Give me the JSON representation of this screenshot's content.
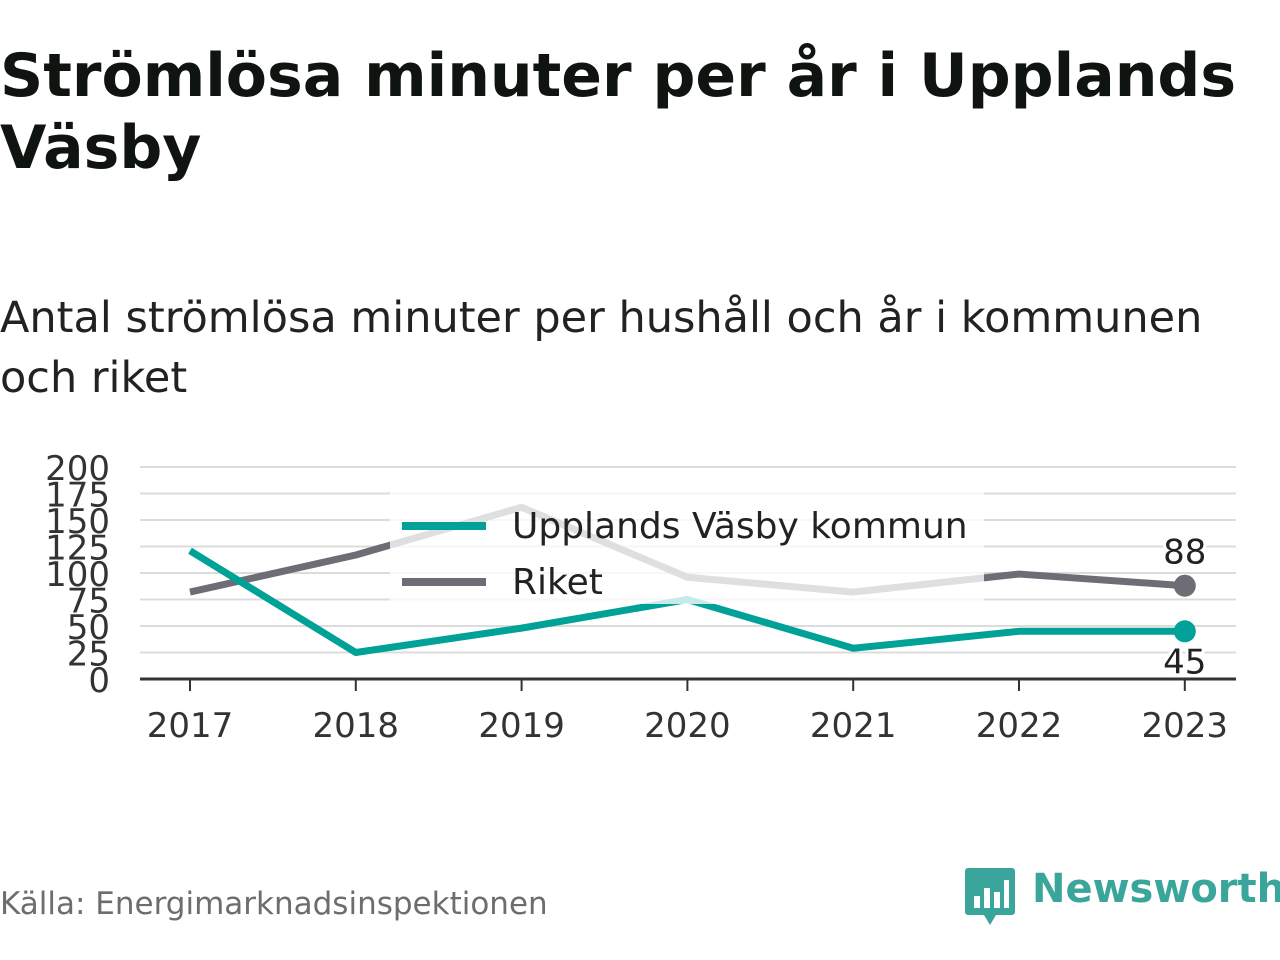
{
  "title": "Strömlösa minuter per år i Upplands Väsby",
  "subtitle": "Antal strömlösa minuter per hushåll och år i kommunen och riket",
  "source": "Källa: Energimarknadsinspektionen",
  "logo_text": "Newsworthy",
  "colors": {
    "kommun": "#00a196",
    "riket": "#6e6d76",
    "grid": "#dcdcdc",
    "axis": "#333333",
    "logo": "#3aa59a"
  },
  "chart_data": {
    "type": "line",
    "x": [
      "2017",
      "2018",
      "2019",
      "2020",
      "2021",
      "2022",
      "2023"
    ],
    "series": [
      {
        "name": "Upplands Väsby kommun",
        "values": [
          121,
          25,
          48,
          75,
          29,
          45,
          45
        ]
      },
      {
        "name": "Riket",
        "values": [
          82,
          117,
          162,
          96,
          82,
          99,
          88
        ]
      }
    ],
    "yticks": [
      "0",
      "25",
      "50",
      "75",
      "100",
      "125",
      "150",
      "175",
      "200"
    ],
    "ylim": [
      0,
      200
    ],
    "grid": true,
    "legend_placement": "top-center",
    "end_labels": [
      "45",
      "88"
    ]
  }
}
